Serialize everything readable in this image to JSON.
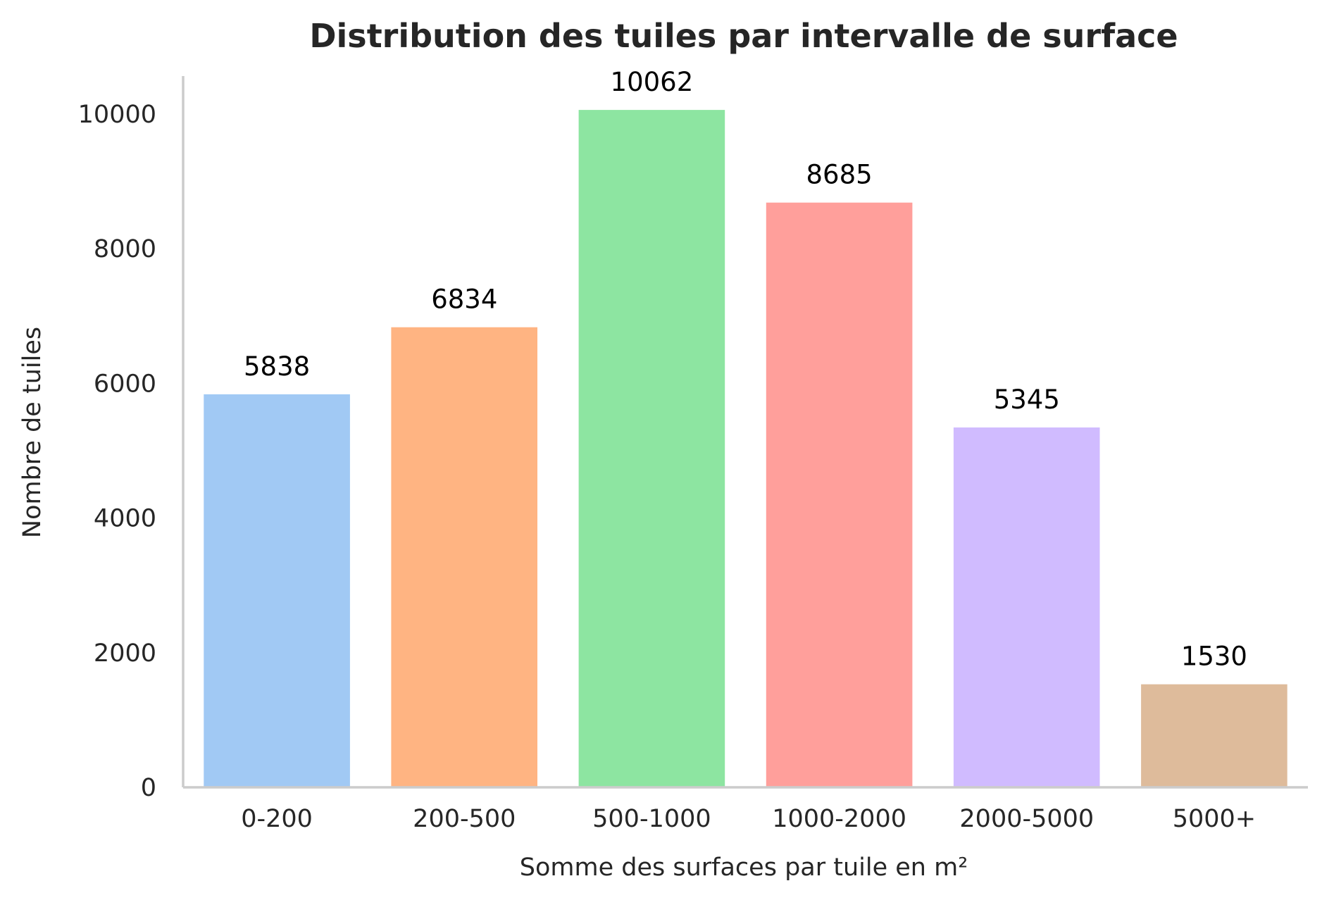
{
  "chart_data": {
    "type": "bar",
    "title": "Distribution des tuiles par intervalle de surface",
    "xlabel": "Somme des surfaces par tuile en m²",
    "ylabel": "Nombre de tuiles",
    "categories": [
      "0-200",
      "200-500",
      "500-1000",
      "1000-2000",
      "2000-5000",
      "5000+"
    ],
    "values": [
      5838,
      6834,
      10062,
      8685,
      5345,
      1530
    ],
    "data_labels": [
      "5838",
      "6834",
      "10062",
      "8685",
      "5345",
      "1530"
    ],
    "colors": [
      "#a1c9f4",
      "#ffb482",
      "#8de5a1",
      "#ff9f9b",
      "#d0bbff",
      "#debb9b"
    ],
    "yticks": [
      0,
      2000,
      4000,
      6000,
      8000,
      10000
    ],
    "ytick_labels": [
      "0",
      "2000",
      "4000",
      "6000",
      "8000",
      "10000"
    ],
    "ylim": [
      0,
      10565
    ],
    "grid": false,
    "legend": "none"
  }
}
